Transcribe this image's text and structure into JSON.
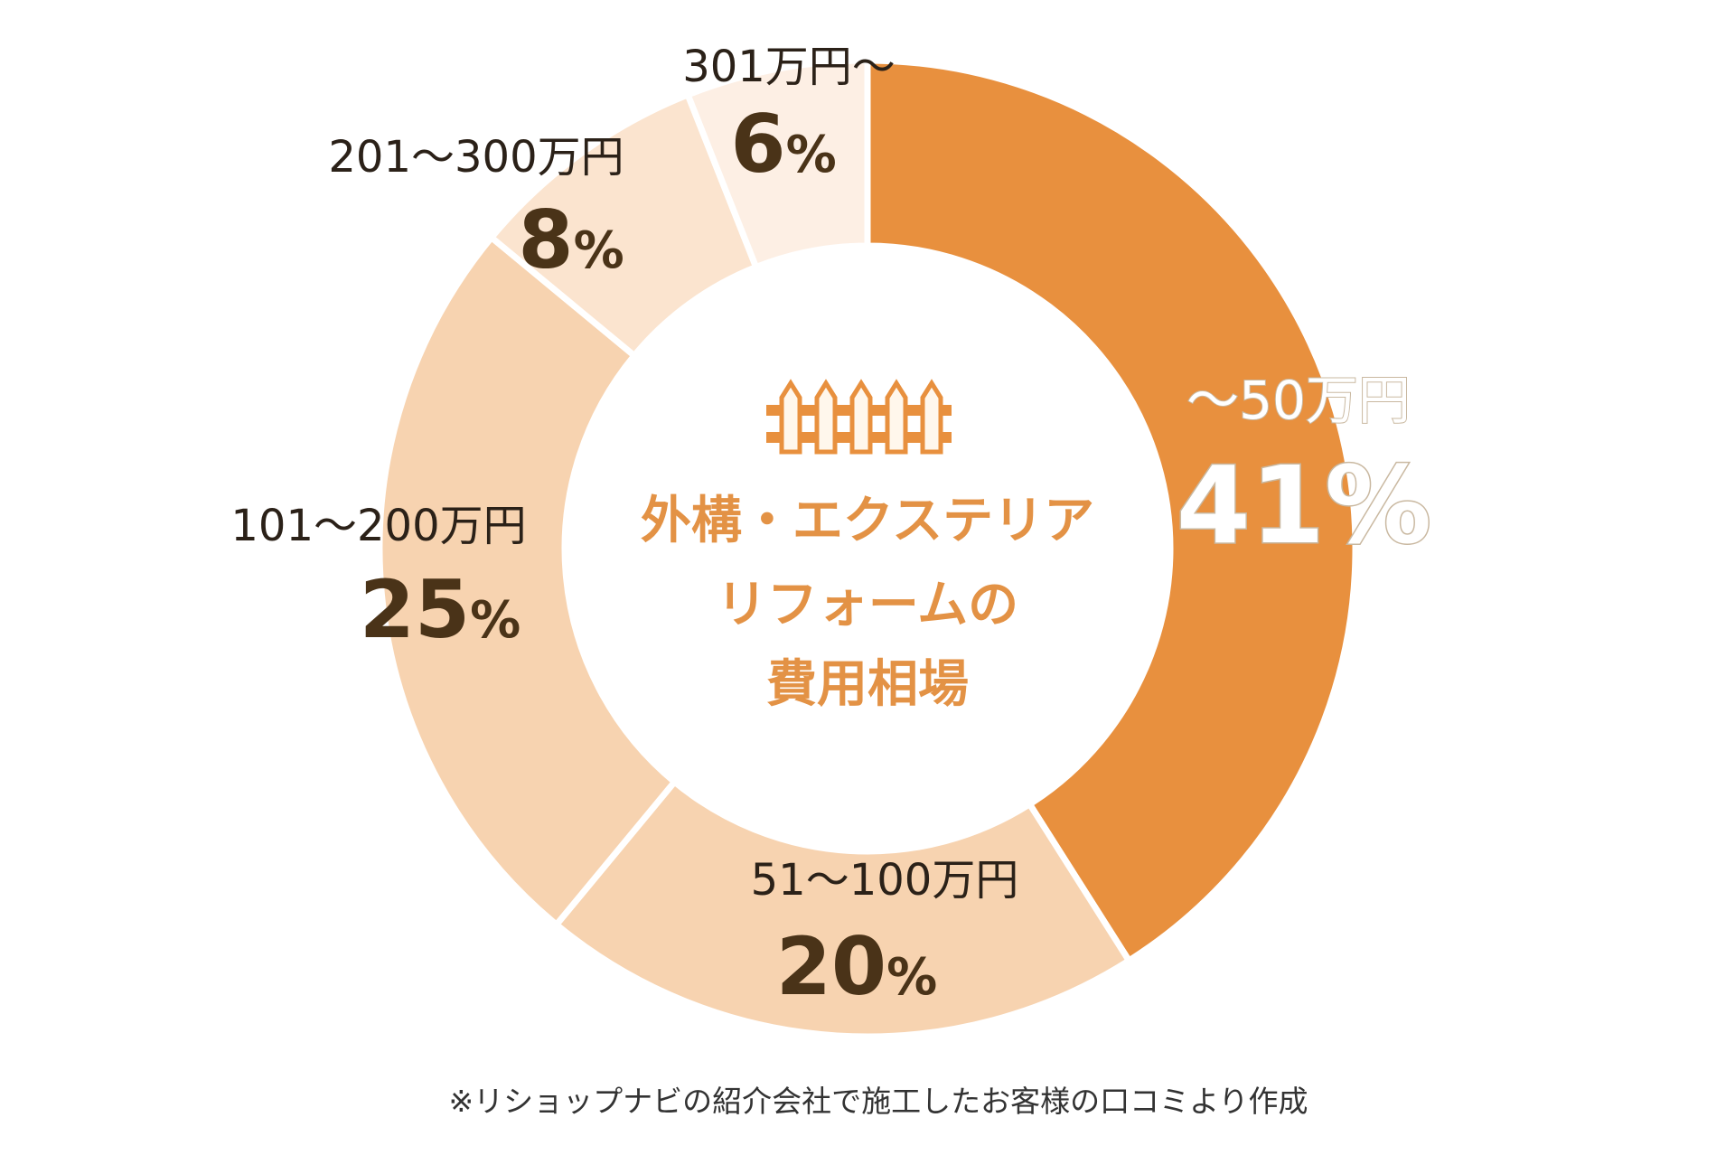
{
  "chart_data": {
    "type": "pie",
    "donut": true,
    "title": "外構・エクステリア\nリフォームの\n費用相場",
    "title_lines": [
      "外構・エクステリア",
      "リフォームの",
      "費用相場"
    ],
    "categories": [
      "～50万円",
      "51～100万円",
      "101～200万円",
      "201～300万円",
      "301万円～"
    ],
    "values": [
      41,
      20,
      25,
      8,
      6
    ],
    "unit": "%",
    "colors": [
      "#E8903E",
      "#F7D3B0",
      "#F7D3B0",
      "#FBE4CF",
      "#FDEFE4"
    ],
    "start": "12 o'clock, clockwise",
    "icon": "fence-icon",
    "footnote": "※リショップナビの紹介会社で施工したお客様の口コミより作成"
  }
}
